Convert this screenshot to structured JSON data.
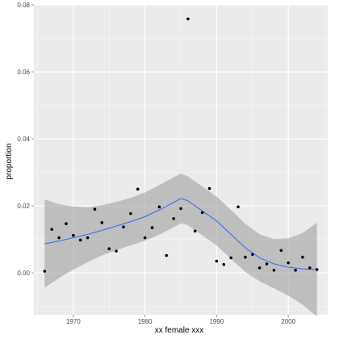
{
  "chart_data": {
    "type": "scatter",
    "title": "",
    "xlabel": "xx female xxx",
    "ylabel": "proportion",
    "xlim": [
      1964.5,
      2005.5
    ],
    "ylim": [
      -0.0125,
      0.08
    ],
    "x_ticks": [
      1970,
      1980,
      1990,
      2000
    ],
    "x_tick_labels": [
      "1970",
      "1980",
      "1990",
      "2000"
    ],
    "y_ticks": [
      0.0,
      0.02,
      0.04,
      0.06,
      0.08
    ],
    "y_tick_labels": [
      "0.00",
      "0.02",
      "0.04",
      "0.06",
      "0.08"
    ],
    "grid": true,
    "legend": "none",
    "colors": {
      "panel": "#ebebeb",
      "grid": "#ffffff",
      "points": "#000000",
      "smooth_line": "#3366ff",
      "confidence_band": "#999999"
    },
    "series": [
      {
        "type": "scatter",
        "points": [
          [
            1966,
            0.0005
          ],
          [
            1967,
            0.013
          ],
          [
            1968,
            0.0105
          ],
          [
            1969,
            0.0147
          ],
          [
            1970,
            0.0112
          ],
          [
            1971,
            0.0098
          ],
          [
            1972,
            0.0105
          ],
          [
            1973,
            0.019
          ],
          [
            1974,
            0.015
          ],
          [
            1975,
            0.0072
          ],
          [
            1976,
            0.0065
          ],
          [
            1977,
            0.0137
          ],
          [
            1978,
            0.0177
          ],
          [
            1979,
            0.025
          ],
          [
            1980,
            0.0105
          ],
          [
            1981,
            0.0135
          ],
          [
            1982,
            0.0197
          ],
          [
            1983,
            0.0052
          ],
          [
            1984,
            0.0162
          ],
          [
            1985,
            0.0192
          ],
          [
            1986,
            0.0758
          ],
          [
            1987,
            0.0125
          ],
          [
            1988,
            0.018
          ],
          [
            1989,
            0.0252
          ],
          [
            1990,
            0.0035
          ],
          [
            1991,
            0.0025
          ],
          [
            1992,
            0.0045
          ],
          [
            1993,
            0.0197
          ],
          [
            1994,
            0.0047
          ],
          [
            1995,
            0.0055
          ],
          [
            1996,
            0.0015
          ],
          [
            1997,
            0.0027
          ],
          [
            1998,
            0.0008
          ],
          [
            1999,
            0.0067
          ],
          [
            2000,
            0.003
          ],
          [
            2001,
            0.0008
          ],
          [
            2002,
            0.0047
          ],
          [
            2003,
            0.0015
          ],
          [
            2004,
            0.001
          ]
        ]
      },
      {
        "type": "smooth",
        "points": [
          [
            1966,
            0.0087
          ],
          [
            1968,
            0.0095
          ],
          [
            1970,
            0.0105
          ],
          [
            1972,
            0.0115
          ],
          [
            1974,
            0.0127
          ],
          [
            1976,
            0.014
          ],
          [
            1978,
            0.0153
          ],
          [
            1980,
            0.0168
          ],
          [
            1982,
            0.0188
          ],
          [
            1984,
            0.021
          ],
          [
            1985,
            0.0222
          ],
          [
            1986,
            0.0215
          ],
          [
            1988,
            0.0185
          ],
          [
            1990,
            0.0155
          ],
          [
            1992,
            0.0115
          ],
          [
            1994,
            0.0075
          ],
          [
            1996,
            0.0045
          ],
          [
            1998,
            0.0027
          ],
          [
            2000,
            0.0017
          ],
          [
            2002,
            0.0012
          ],
          [
            2004,
            0.001
          ]
        ]
      },
      {
        "type": "confidence_band",
        "points": [
          [
            1966,
            -0.0045,
            0.0219
          ],
          [
            1968,
            -0.0015,
            0.0205
          ],
          [
            1970,
            0.001,
            0.0198
          ],
          [
            1972,
            0.0032,
            0.0196
          ],
          [
            1974,
            0.0052,
            0.0202
          ],
          [
            1976,
            0.0068,
            0.0212
          ],
          [
            1978,
            0.0082,
            0.0224
          ],
          [
            1980,
            0.0096,
            0.024
          ],
          [
            1982,
            0.0114,
            0.0262
          ],
          [
            1984,
            0.0136,
            0.0285
          ],
          [
            1985,
            0.0148,
            0.0296
          ],
          [
            1986,
            0.0142,
            0.0288
          ],
          [
            1988,
            0.0112,
            0.0258
          ],
          [
            1990,
            0.0082,
            0.0228
          ],
          [
            1992,
            0.0042,
            0.0188
          ],
          [
            1994,
            0.0003,
            0.0147
          ],
          [
            1996,
            -0.0025,
            0.0115
          ],
          [
            1998,
            -0.0046,
            0.0101
          ],
          [
            2000,
            -0.0068,
            0.0103
          ],
          [
            2002,
            -0.0095,
            0.0119
          ],
          [
            2004,
            -0.013,
            0.015
          ]
        ]
      }
    ]
  }
}
